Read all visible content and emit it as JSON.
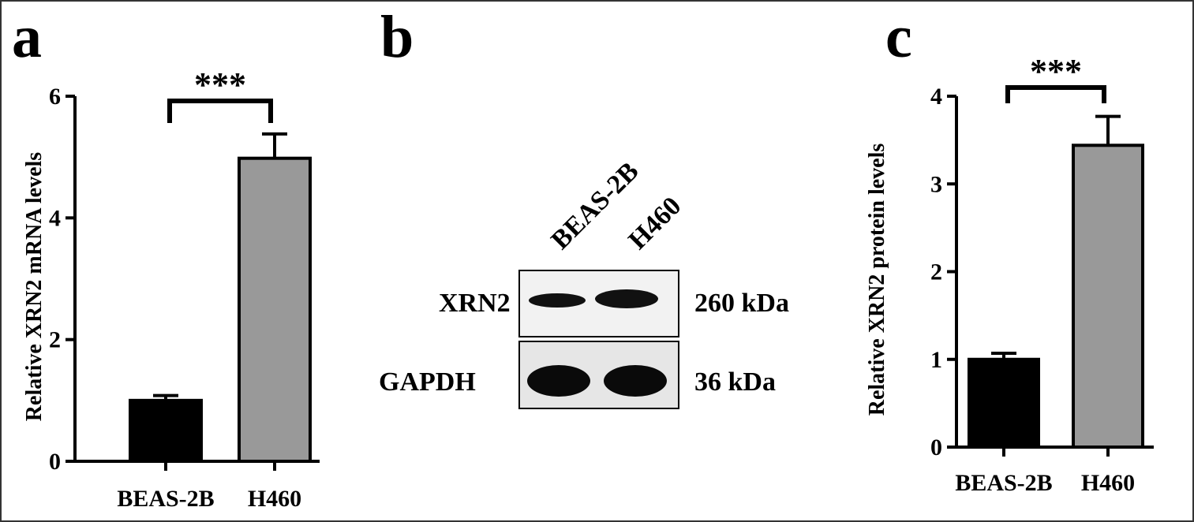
{
  "chart_data": [
    {
      "type": "bar",
      "panel_label": "a",
      "y_label": "Relative XRN2 mRNA levels",
      "categories": [
        "BEAS-2B",
        "H460"
      ],
      "values": [
        1.0,
        4.98
      ],
      "errors": [
        0.08,
        0.4
      ],
      "colors": [
        "#000000",
        "#999999"
      ],
      "ylim": [
        0,
        6
      ],
      "yticks": [
        0,
        2,
        4,
        6
      ],
      "annotation": "***"
    },
    {
      "type": "bar",
      "panel_label": "c",
      "y_label": "Relative XRN2 protein levels",
      "categories": [
        "BEAS-2B",
        "H460"
      ],
      "values": [
        1.0,
        3.44
      ],
      "errors": [
        0.07,
        0.33
      ],
      "colors": [
        "#000000",
        "#999999"
      ],
      "ylim": [
        0,
        4
      ],
      "yticks": [
        0,
        1,
        2,
        3,
        4
      ],
      "annotation": "***"
    }
  ],
  "blot": {
    "panel_label": "b",
    "lanes": [
      "BEAS-2B",
      "H460"
    ],
    "rows": [
      {
        "protein": "XRN2",
        "size": "260 kDa"
      },
      {
        "protein": "GAPDH",
        "size": "36 kDa"
      }
    ]
  }
}
